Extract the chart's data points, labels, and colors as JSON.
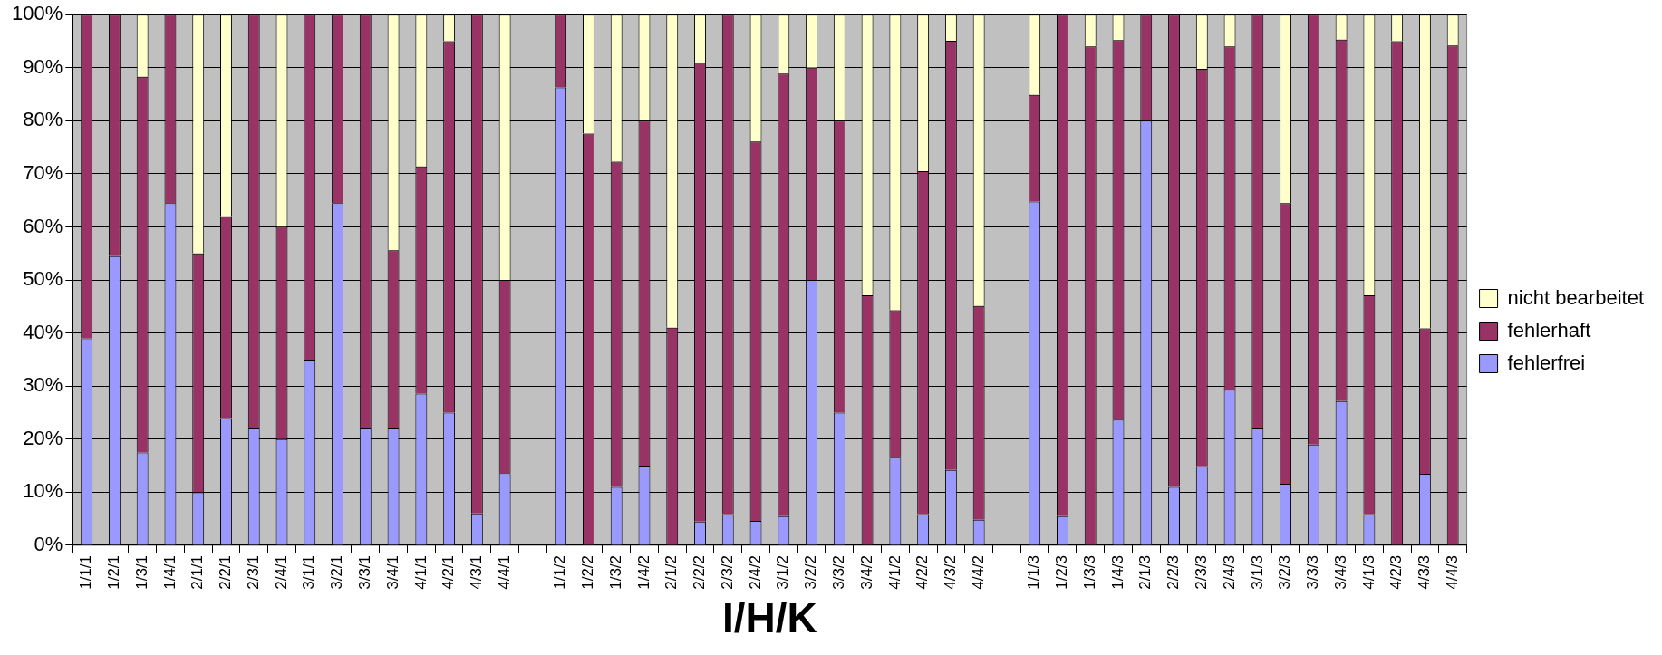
{
  "chart_data": {
    "type": "bar",
    "stacked": true,
    "xlabel": "I/H/K",
    "categories": [
      "1/1/1",
      "1/2/1",
      "1/3/1",
      "1/4/1",
      "2/1/1",
      "2/2/1",
      "2/3/1",
      "2/4/1",
      "3/1/1",
      "3/2/1",
      "3/3/1",
      "3/4/1",
      "4/1/1",
      "4/2/1",
      "4/3/1",
      "4/4/1",
      null,
      "1/1/2",
      "1/2/2",
      "1/3/2",
      "1/4/2",
      "2/1/2",
      "2/2/2",
      "2/3/2",
      "2/4/2",
      "3/1/2",
      "3/2/2",
      "3/3/2",
      "3/4/2",
      "4/1/2",
      "4/2/2",
      "4/3/2",
      "4/4/2",
      null,
      "1/1/3",
      "1/2/3",
      "1/3/3",
      "1/4/3",
      "2/1/3",
      "2/2/3",
      "2/3/3",
      "2/4/3",
      "3/1/3",
      "3/2/3",
      "3/3/3",
      "3/4/3",
      "4/1/3",
      "4/2/3",
      "4/3/3",
      "4/4/3"
    ],
    "series": [
      {
        "name": "fehlerfrei",
        "color": "#9999ff",
        "values": [
          39,
          54.5,
          17.5,
          64.5,
          10,
          24,
          22.2,
          20,
          35,
          64.5,
          22.2,
          22.2,
          28.6,
          25,
          6,
          13.6,
          null,
          86.3,
          0,
          11,
          15,
          0,
          4.5,
          5.9,
          4.6,
          5.5,
          50,
          25,
          0,
          16.7,
          5.9,
          14.2,
          4.8,
          null,
          64.8,
          5.5,
          0,
          23.7,
          80,
          11,
          14.9,
          29.3,
          22.2,
          11.6,
          19,
          27.2,
          5.9,
          0,
          13.5,
          0
        ]
      },
      {
        "name": "fehlerhaft",
        "color": "#993366",
        "values": [
          61,
          45.5,
          70.8,
          35.5,
          45,
          38,
          77.8,
          40,
          65,
          35.5,
          77.8,
          33.4,
          42.8,
          70,
          94,
          36.4,
          null,
          13.7,
          77.6,
          61.3,
          65,
          41,
          86.4,
          94.1,
          71.5,
          83.4,
          40,
          55,
          47.1,
          27.6,
          64.6,
          80.9,
          40.3,
          null,
          20.1,
          94.5,
          94,
          71.5,
          20,
          89,
          74.9,
          64.7,
          77.8,
          52.9,
          81,
          68.1,
          41.2,
          95,
          27.4,
          94.2
        ]
      },
      {
        "name": "nicht bearbeitet",
        "color": "#ffffcc",
        "values": [
          0,
          0,
          11.7,
          0,
          45,
          38,
          0,
          40,
          0,
          0,
          0,
          44.4,
          28.6,
          5,
          0,
          50,
          null,
          0,
          22.4,
          27.7,
          20,
          59,
          9.1,
          0,
          23.9,
          11.1,
          10,
          20,
          52.9,
          55.7,
          29.5,
          4.9,
          54.9,
          null,
          15.1,
          0,
          6,
          4.8,
          0,
          0,
          10.2,
          6,
          0,
          35.5,
          0,
          4.7,
          52.9,
          5,
          59.1,
          5.8
        ]
      }
    ],
    "ylim": [
      0,
      100
    ],
    "yticks": [
      {
        "value": 0,
        "label": "0%"
      },
      {
        "value": 10,
        "label": "10%"
      },
      {
        "value": 20,
        "label": "20%"
      },
      {
        "value": 30,
        "label": "30%"
      },
      {
        "value": 40,
        "label": "40%"
      },
      {
        "value": 50,
        "label": "50%"
      },
      {
        "value": 60,
        "label": "60%"
      },
      {
        "value": 70,
        "label": "70%"
      },
      {
        "value": 80,
        "label": "80%"
      },
      {
        "value": 90,
        "label": "90%"
      },
      {
        "value": 100,
        "label": "100%"
      }
    ],
    "grid": "y",
    "legend": "right"
  }
}
